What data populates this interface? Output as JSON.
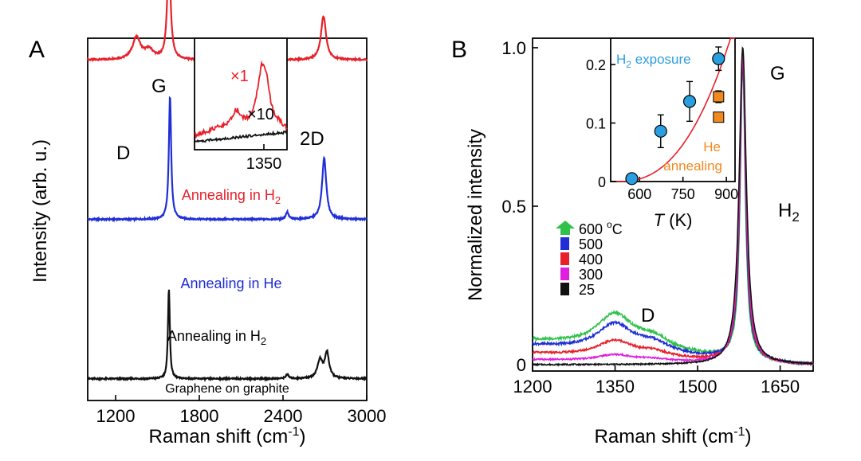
{
  "chart_data": [
    {
      "panel": "A",
      "type": "line",
      "xlabel": "Raman shift (cm",
      "xlabel_sup": "-1",
      "xlabel_end": ")",
      "ylabel": "Intensity (arb. u.)",
      "xlim": [
        1000,
        3000
      ],
      "xticks": [
        "1200",
        "1800",
        "2400",
        "3000"
      ],
      "xtick_values": [
        1200,
        1800,
        2400,
        3000
      ],
      "peak_labels": {
        "d": "D",
        "g": "G",
        "d2": "2D"
      },
      "series": [
        {
          "label": "Annealing in H",
          "label_sub": "2",
          "color": "#e8202a",
          "offset": 0.94,
          "peaks": [
            [
              1350,
              0.06,
              35
            ],
            [
              1440,
              0.025,
              40
            ],
            [
              1582,
              0.3,
              14
            ],
            [
              2690,
              0.12,
              22
            ]
          ]
        },
        {
          "label": "Annealing in He",
          "label_sub": "",
          "color": "#1f2ed6",
          "offset": 0.5,
          "peaks": [
            [
              1590,
              0.34,
              10
            ],
            [
              2430,
              0.02,
              12
            ],
            [
              2695,
              0.17,
              18
            ]
          ]
        },
        {
          "label": "Annealing in H",
          "label_sub": "2",
          "color": "#111111",
          "offset": 0.06,
          "peaks": [
            [
              1582,
              0.25,
              8
            ],
            [
              2430,
              0.012,
              12
            ],
            [
              2665,
              0.05,
              22
            ],
            [
              2715,
              0.07,
              18
            ]
          ]
        }
      ],
      "bottom_label": "Graphene on graphite",
      "inset": {
        "xtick": "1350",
        "series": [
          {
            "label": "×1",
            "color": "#e8202a"
          },
          {
            "label": "×10",
            "color": "#111111"
          }
        ]
      }
    },
    {
      "panel": "B",
      "type": "line",
      "xlabel": "Raman shift (cm",
      "xlabel_sup": "-1",
      "xlabel_end": ")",
      "ylabel": "Normalized intensity",
      "xlim": [
        1200,
        1710
      ],
      "ylim": [
        -0.02,
        1.03
      ],
      "xticks": [
        "1200",
        "1350",
        "1500",
        "1650"
      ],
      "xtick_values": [
        1200,
        1350,
        1500,
        1650
      ],
      "yticks": [
        "0",
        "0.5",
        "1.0"
      ],
      "ytick_values": [
        0,
        0.5,
        1.0
      ],
      "peak_labels": {
        "d": "D",
        "g": "G",
        "h2": "H",
        "h2_sub": "2"
      },
      "legend": [
        {
          "label": "600 ",
          "label_sup": "o",
          "label_end": "C",
          "color": "#2fc24a",
          "d_height": 0.105,
          "base": 0.075
        },
        {
          "label": "500",
          "color": "#1f2ed6",
          "d_height": 0.085,
          "base": 0.06
        },
        {
          "label": "400",
          "color": "#e8202a",
          "d_height": 0.05,
          "base": 0.035
        },
        {
          "label": "300",
          "color": "#e020e0",
          "d_height": 0.02,
          "base": 0.015
        },
        {
          "label": "25",
          "color": "#111111",
          "d_height": 0.0,
          "base": 0.0
        }
      ],
      "inset": {
        "type": "scatter",
        "xlabel": "T",
        "xlabel_end": " (K)",
        "xlim": [
          500,
          930
        ],
        "ylim": [
          0,
          0.245
        ],
        "xticks": [
          "600",
          "750",
          "900"
        ],
        "xtick_values": [
          600,
          750,
          900
        ],
        "yticks": [
          "0",
          "0.1",
          "0.2"
        ],
        "ytick_values": [
          0,
          0.1,
          0.2
        ],
        "h2_label": "H",
        "h2_label_sub": "2",
        "h2_label_end": " exposure",
        "he_label_1": "He",
        "he_label_2": "annealing",
        "h2_points": [
          {
            "x": 573,
            "y": 0.005,
            "err": 0.003
          },
          {
            "x": 673,
            "y": 0.086,
            "err": 0.028
          },
          {
            "x": 773,
            "y": 0.137,
            "err": 0.034
          },
          {
            "x": 873,
            "y": 0.21,
            "err": 0.02
          }
        ],
        "he_points": [
          {
            "x": 873,
            "y": 0.145,
            "err": 0.01
          },
          {
            "x": 873,
            "y": 0.11,
            "err": 0.004
          }
        ],
        "h2_color": "#2a9fe0",
        "he_color": "#f08a1f",
        "fit_color": "#e8202a"
      }
    }
  ]
}
